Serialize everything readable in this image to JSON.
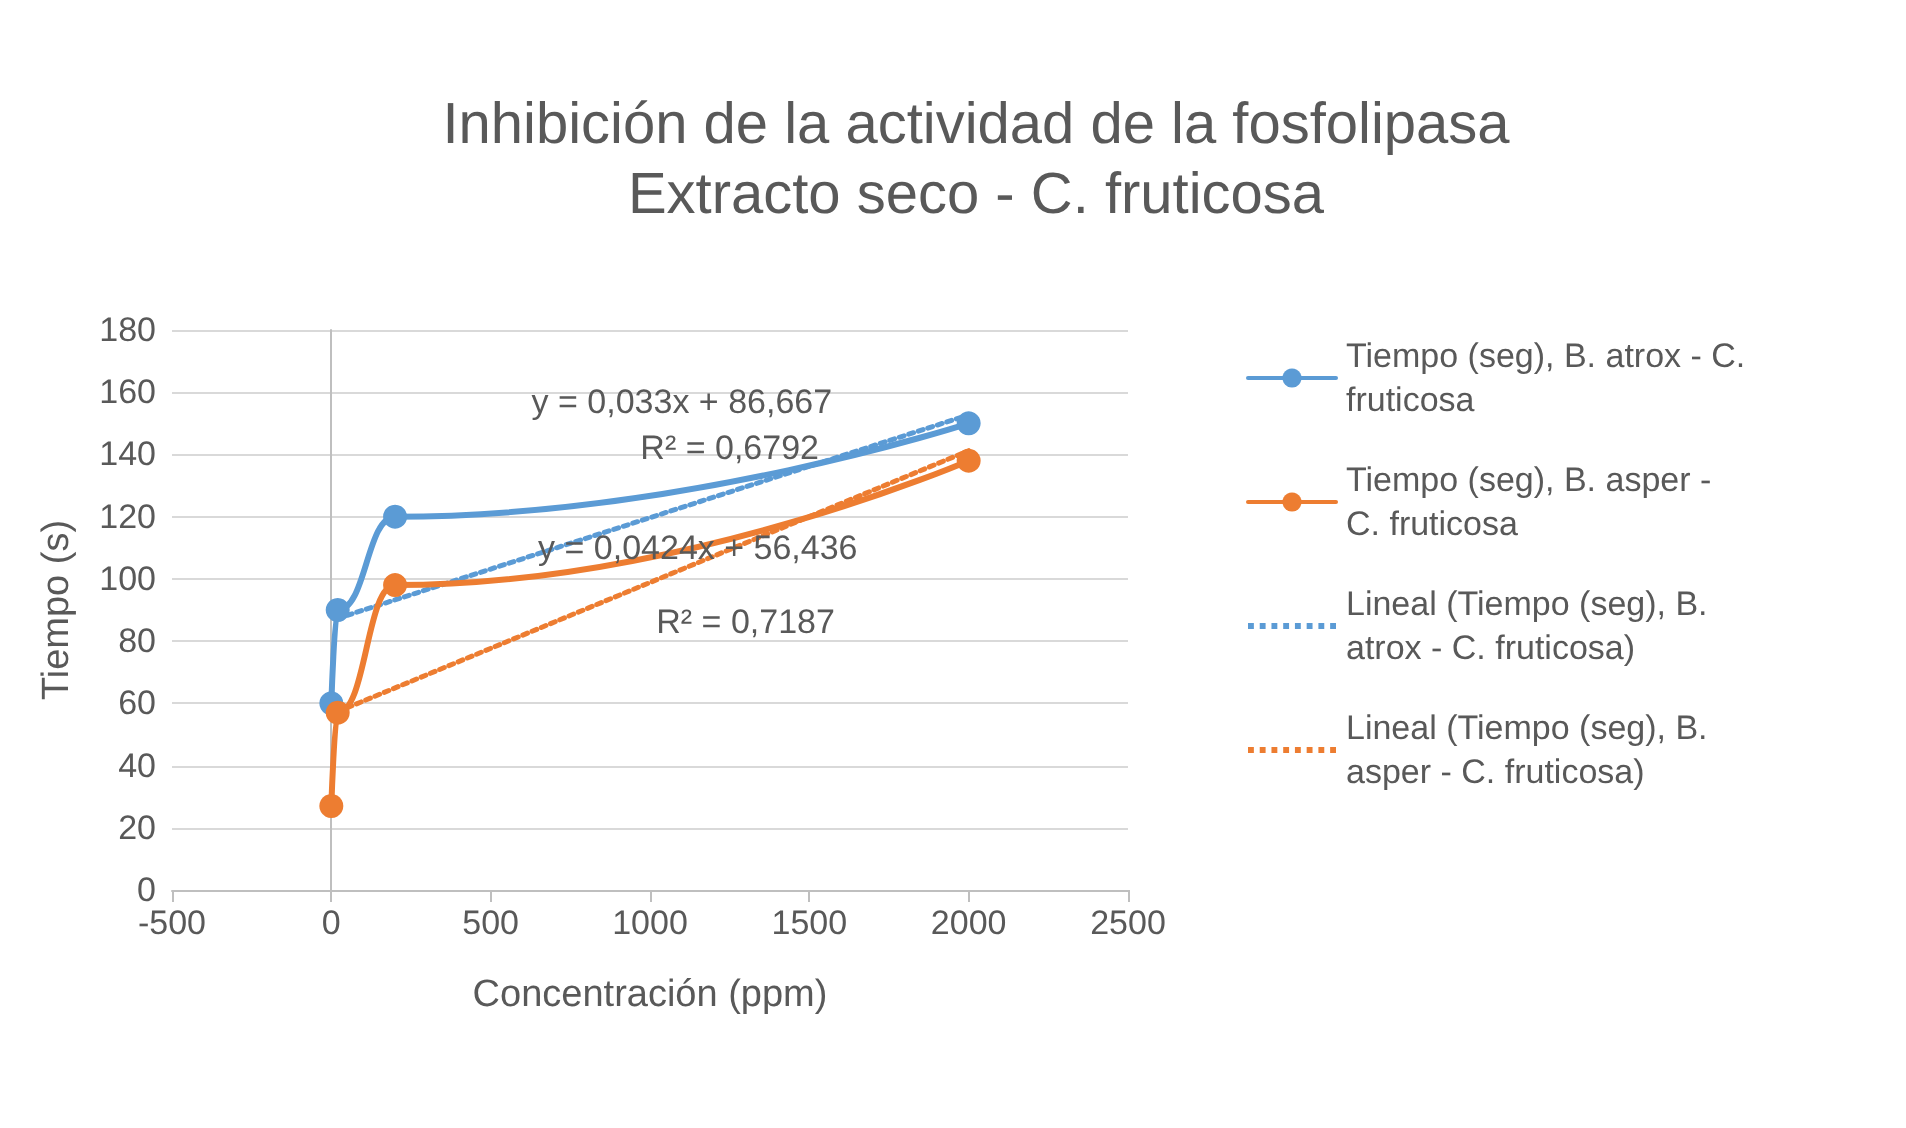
{
  "chart_data": {
    "type": "line",
    "title": "Inhibición de la actividad de la fosfolipasa",
    "subtitle": "Extracto seco - C. fruticosa",
    "xlabel": "Concentración (ppm)",
    "ylabel": "Tiempo (s)",
    "xlim": [
      -500,
      2500
    ],
    "xticks": [
      -500,
      0,
      500,
      1000,
      1500,
      2000,
      2500
    ],
    "ylim": [
      0,
      180
    ],
    "yticks": [
      0,
      20,
      40,
      60,
      80,
      100,
      120,
      140,
      160,
      180
    ],
    "grid": "y",
    "legend": "right",
    "marker": "circle",
    "series": [
      {
        "name": "Tiempo (seg), B. atrox - C. fruticosa",
        "color": "#5b9bd5",
        "x": [
          0,
          20,
          200,
          2000
        ],
        "values": [
          60,
          90,
          120,
          150
        ]
      },
      {
        "name": "Tiempo (seg), B. asper - C. fruticosa",
        "color": "#ed7d31",
        "x": [
          0,
          20,
          200,
          2000
        ],
        "values": [
          27,
          57,
          98,
          138
        ]
      },
      {
        "name": "Lineal (Tiempo (seg), B. atrox - C. fruticosa)",
        "color": "#5b9bd5",
        "x": [
          50,
          2000
        ],
        "values": [
          88.3,
          152.7
        ],
        "line_style": "dotted",
        "marker": "none"
      },
      {
        "name": "Lineal (Tiempo (seg), B. asper - C. fruticosa)",
        "color": "#ed7d31",
        "x": [
          50,
          2000
        ],
        "values": [
          58.6,
          141.2
        ],
        "line_style": "dotted",
        "marker": "none"
      }
    ],
    "annotations": [
      "y = 0,033x + 86,667",
      "R² = 0,6792",
      "y = 0,0424x + 56,436",
      "R² = 0,7187"
    ]
  }
}
